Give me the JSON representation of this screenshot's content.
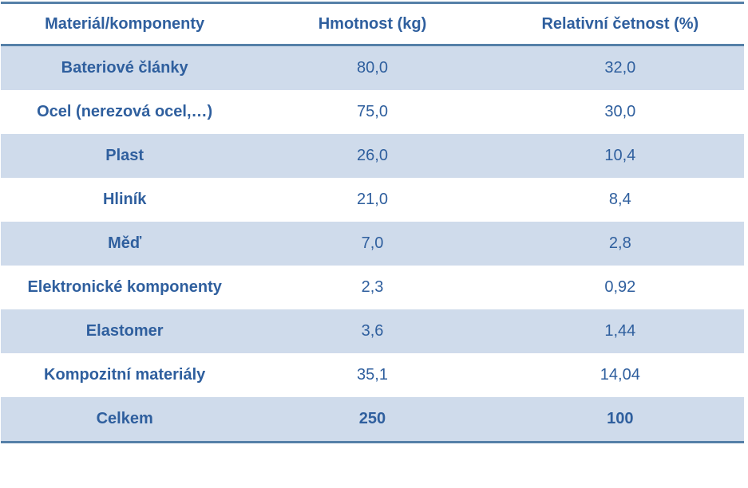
{
  "table": {
    "columns": [
      "Materiál/komponenty",
      "Hmotnost (kg)",
      "Relativní četnost (%)"
    ],
    "rows": [
      {
        "label": "Bateriové články",
        "mass": "80,0",
        "freq": "32,0",
        "total": false
      },
      {
        "label": "Ocel (nerezová ocel,…)",
        "mass": "75,0",
        "freq": "30,0",
        "total": false
      },
      {
        "label": "Plast",
        "mass": "26,0",
        "freq": "10,4",
        "total": false
      },
      {
        "label": "Hliník",
        "mass": "21,0",
        "freq": "8,4",
        "total": false
      },
      {
        "label": "Měď",
        "mass": "7,0",
        "freq": "2,8",
        "total": false
      },
      {
        "label": "Elektronické komponenty",
        "mass": "2,3",
        "freq": "0,92",
        "total": false
      },
      {
        "label": "Elastomer",
        "mass": "3,6",
        "freq": "1,44",
        "total": false
      },
      {
        "label": "Kompozitní materiály",
        "mass": "35,1",
        "freq": "14,04",
        "total": false
      },
      {
        "label": "Celkem",
        "mass": "250",
        "freq": "100",
        "total": true
      }
    ]
  },
  "colors": {
    "text_accent": "#2f5f9e",
    "stripe_background": "#cfdbeb",
    "border": "#5580a8",
    "page_background": "#ffffff"
  },
  "chart_data": {
    "type": "table",
    "title": "",
    "columns": [
      "Materiál/komponenty",
      "Hmotnost (kg)",
      "Relativní četnost (%)"
    ],
    "rows": [
      [
        "Bateriové články",
        "80,0",
        "32,0"
      ],
      [
        "Ocel (nerezová ocel,…)",
        "75,0",
        "30,0"
      ],
      [
        "Plast",
        "26,0",
        "10,4"
      ],
      [
        "Hliník",
        "21,0",
        "8,4"
      ],
      [
        "Měď",
        "7,0",
        "2,8"
      ],
      [
        "Elektronické komponenty",
        "2,3",
        "0,92"
      ],
      [
        "Elastomer",
        "3,6",
        "1,44"
      ],
      [
        "Kompozitní materiály",
        "35,1",
        "14,04"
      ],
      [
        "Celkem",
        "250",
        "100"
      ]
    ]
  }
}
